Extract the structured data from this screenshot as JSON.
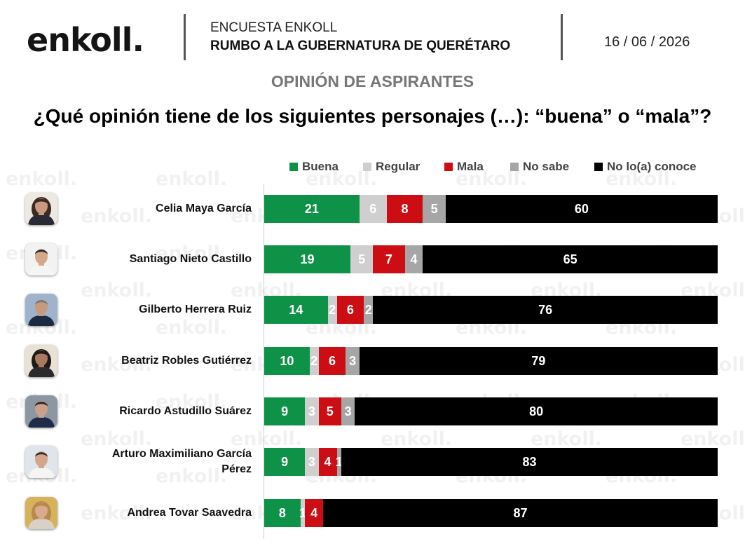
{
  "header": {
    "logo": "enkoll.",
    "survey_name": "ENCUESTA ENKOLL",
    "survey_title": "RUMBO A LA GUBERNATURA DE QUERÉTARO",
    "date": "16 / 06 / 2026"
  },
  "section_title": "OPINIÓN DE ASPIRANTES",
  "question": "¿Qué opinión tiene de los siguientes personajes (…): “buena” o “mala”?",
  "watermark": "enkoll.",
  "colors": {
    "buena": "#0e9247",
    "regular": "#cfcfcf",
    "mala": "#cc0e14",
    "no_sabe": "#a6a6a6",
    "no_conoce": "#000000"
  },
  "chart_data": {
    "type": "bar",
    "orientation": "horizontal",
    "stacked": true,
    "unit": "%",
    "xlim": [
      0,
      100
    ],
    "categories": [
      "Celia Maya García",
      "Santiago Nieto Castillo",
      "Gilberto Herrera Ruiz",
      "Beatriz Robles Gutiérrez",
      "Ricardo Astudillo Suárez",
      "Arturo Maximiliano García Pérez",
      "Andrea Tovar Saavedra"
    ],
    "series": [
      {
        "name": "Buena",
        "key": "buena",
        "values": [
          21,
          19,
          14,
          10,
          9,
          9,
          8
        ]
      },
      {
        "name": "Regular",
        "key": "regular",
        "values": [
          6,
          5,
          2,
          2,
          3,
          3,
          1
        ]
      },
      {
        "name": "Mala",
        "key": "mala",
        "values": [
          8,
          7,
          6,
          6,
          5,
          4,
          4
        ]
      },
      {
        "name": "No sabe",
        "key": "no_sabe",
        "values": [
          5,
          4,
          2,
          3,
          3,
          1,
          0
        ]
      },
      {
        "name": "No lo(a) conoce",
        "key": "no_conoce",
        "values": [
          60,
          65,
          76,
          79,
          80,
          83,
          87
        ]
      }
    ],
    "legend_position": "top",
    "grid": false
  }
}
